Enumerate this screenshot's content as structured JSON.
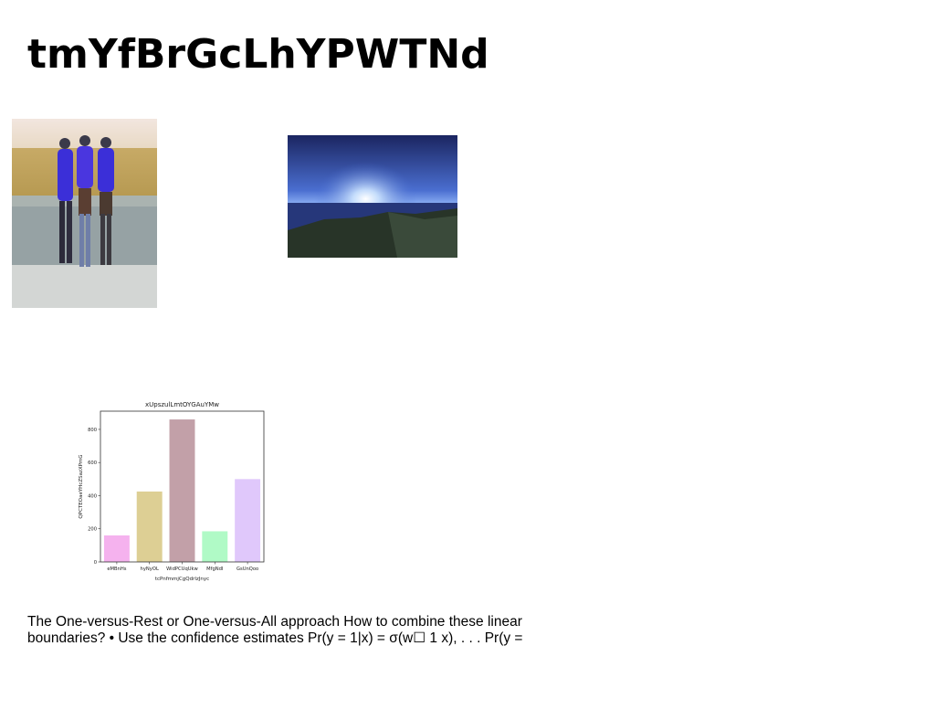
{
  "title": "tmYfBrGcLhYPWTNd",
  "images": [
    {
      "name": "three-people-on-wall-photo",
      "colors": {
        "sky": "#efe4da",
        "field": "#c9a85e",
        "wall": "#9aa6a6",
        "ground": "#cfd3d1",
        "shirts": "#3b2fd8"
      }
    },
    {
      "name": "blue-seaside-sunset-photo",
      "colors": {
        "sky": "#3a57b8",
        "sun": "#e6f2ff",
        "sea": "#1c2c60",
        "land": "#263326"
      }
    }
  ],
  "chart_data": {
    "type": "bar",
    "title": "xUpszulLmtOYGAuYMw",
    "xlabel": "tcPnfmmjCgQdrlzJnyc",
    "ylabel": "QPCTEOaeYHcZSazXPmG",
    "categories": [
      "eMBnHs",
      "hyNyOL",
      "WidPCUqUkw",
      "MfgNdI",
      "GsUnQoo"
    ],
    "values": [
      160,
      425,
      860,
      185,
      500
    ],
    "colors": [
      "#f5b2ee",
      "#ddcf94",
      "#c2a0a8",
      "#b0fac6",
      "#e0c8fb"
    ],
    "ylim": [
      0,
      910
    ],
    "yticks": [
      0,
      200,
      400,
      600,
      800
    ],
    "grid": false
  },
  "body_text": "The One-versus-Rest or One-versus-All approach How to combine these linear boundaries? • Use the confidence estimates Pr(y = 1|x) = σ(w☐ 1 x), . . . Pr(y ="
}
